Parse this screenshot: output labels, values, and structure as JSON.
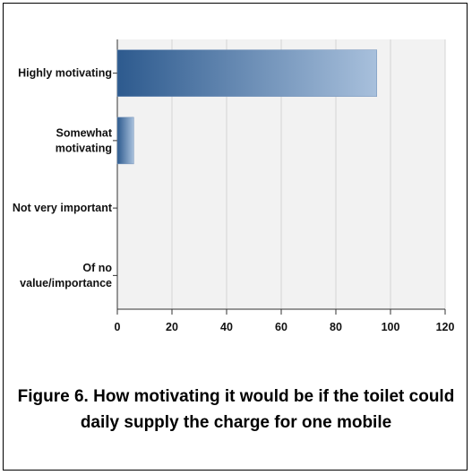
{
  "chart_data": {
    "type": "bar",
    "orientation": "horizontal",
    "categories": [
      [
        "Highly motivating"
      ],
      [
        "Somewhat",
        "motivating"
      ],
      [
        "Not very important"
      ],
      [
        "Of no",
        "value/importance"
      ]
    ],
    "values": [
      95,
      6,
      0,
      0
    ],
    "xlim": [
      0,
      120
    ],
    "xticks": [
      "0",
      "20",
      "40",
      "60",
      "80",
      "100",
      "120"
    ],
    "grid": true,
    "colors": {
      "bar_dark": "#2d5a8e",
      "bar_light": "#a8c0dc",
      "plot_bg": "#f2f2f2",
      "grid": "#d4d4d4"
    }
  },
  "caption": "Figure 6. How motivating it would be if the toilet could daily supply the charge for one mobile"
}
